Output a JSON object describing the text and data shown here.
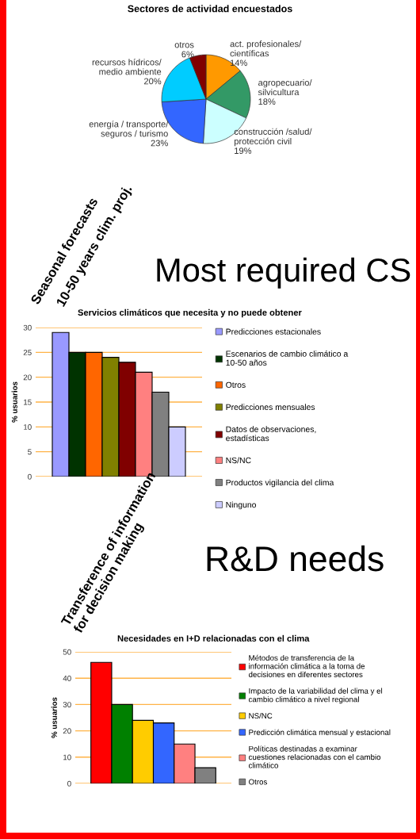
{
  "chart_data": [
    {
      "type": "pie",
      "title": "Sectores de actividad encuestados",
      "categories": [
        "act. profesionales/\ncientíficas",
        "agropecuario/\nsilvicultura",
        "construcción /salud/\nprotección civil",
        "energía / transporte/\nseguros / turismo",
        "recursos hídricos/\nmedio ambiente",
        "otros"
      ],
      "values": [
        14,
        18,
        19,
        23,
        20,
        6
      ],
      "value_labels": [
        "14%",
        "18%",
        "19%",
        "23%",
        "20%",
        "6%"
      ],
      "colors": [
        "#ff9900",
        "#339966",
        "#ccffff",
        "#3366ff",
        "#00ccff",
        "#800000"
      ]
    },
    {
      "type": "bar",
      "title": "Servicios climáticos que necesita y no puede obtener",
      "ylabel": "% usuarios",
      "categories": [
        null
      ],
      "ylim": [
        0,
        30
      ],
      "yticks": [
        0,
        5,
        10,
        15,
        20,
        25,
        30
      ],
      "grid": "y",
      "legend": "right",
      "annotations": [
        "Most required CS",
        "Seasonal forecasts",
        "10-50 years clim. proj."
      ],
      "series": [
        {
          "name": "Predicciones estacionales",
          "color": "#9999ff",
          "values": [
            29
          ]
        },
        {
          "name": "Escenarios de cambio climático a\n10-50 años",
          "color": "#003300",
          "values": [
            25
          ]
        },
        {
          "name": "Otros",
          "color": "#ff6600",
          "values": [
            25
          ]
        },
        {
          "name": "Predicciones mensuales",
          "color": "#808000",
          "values": [
            24
          ]
        },
        {
          "name": "Datos de observaciones,\nestadísticas",
          "color": "#800000",
          "values": [
            23
          ]
        },
        {
          "name": "NS/NC",
          "color": "#ff8080",
          "values": [
            21
          ]
        },
        {
          "name": "Productos vigilancia del clima",
          "color": "#808080",
          "values": [
            17
          ]
        },
        {
          "name": "Ninguno",
          "color": "#ccccff",
          "values": [
            10
          ]
        }
      ]
    },
    {
      "type": "bar",
      "title": "Necesidades en I+D relacionadas con el clima",
      "ylabel": "% usuarios",
      "categories": [
        null
      ],
      "ylim": [
        0,
        50
      ],
      "yticks": [
        0,
        10,
        20,
        30,
        40,
        50
      ],
      "grid": "y",
      "legend": "right",
      "annotations": [
        "R&D needs",
        "Transference of information\nfor decision making"
      ],
      "series": [
        {
          "name": "Métodos de transferencia de la\ninformación climática a la toma de\ndecisiones en diferentes sectores",
          "color": "#ff0000",
          "values": [
            46
          ]
        },
        {
          "name": "Impacto de la variabilidad del clima y el\ncambio climático a nivel regional",
          "color": "#008000",
          "values": [
            30
          ]
        },
        {
          "name": "NS/NC",
          "color": "#ffcc00",
          "values": [
            24
          ]
        },
        {
          "name": "Predicción climática mensual y estacional",
          "color": "#3366ff",
          "values": [
            23
          ]
        },
        {
          "name": "Políticas destinadas a examinar\ncuestiones relacionadas con el cambio\nclimático",
          "color": "#ff8080",
          "values": [
            15
          ]
        },
        {
          "name": "Otros",
          "color": "#808080",
          "values": [
            6
          ]
        }
      ]
    }
  ]
}
